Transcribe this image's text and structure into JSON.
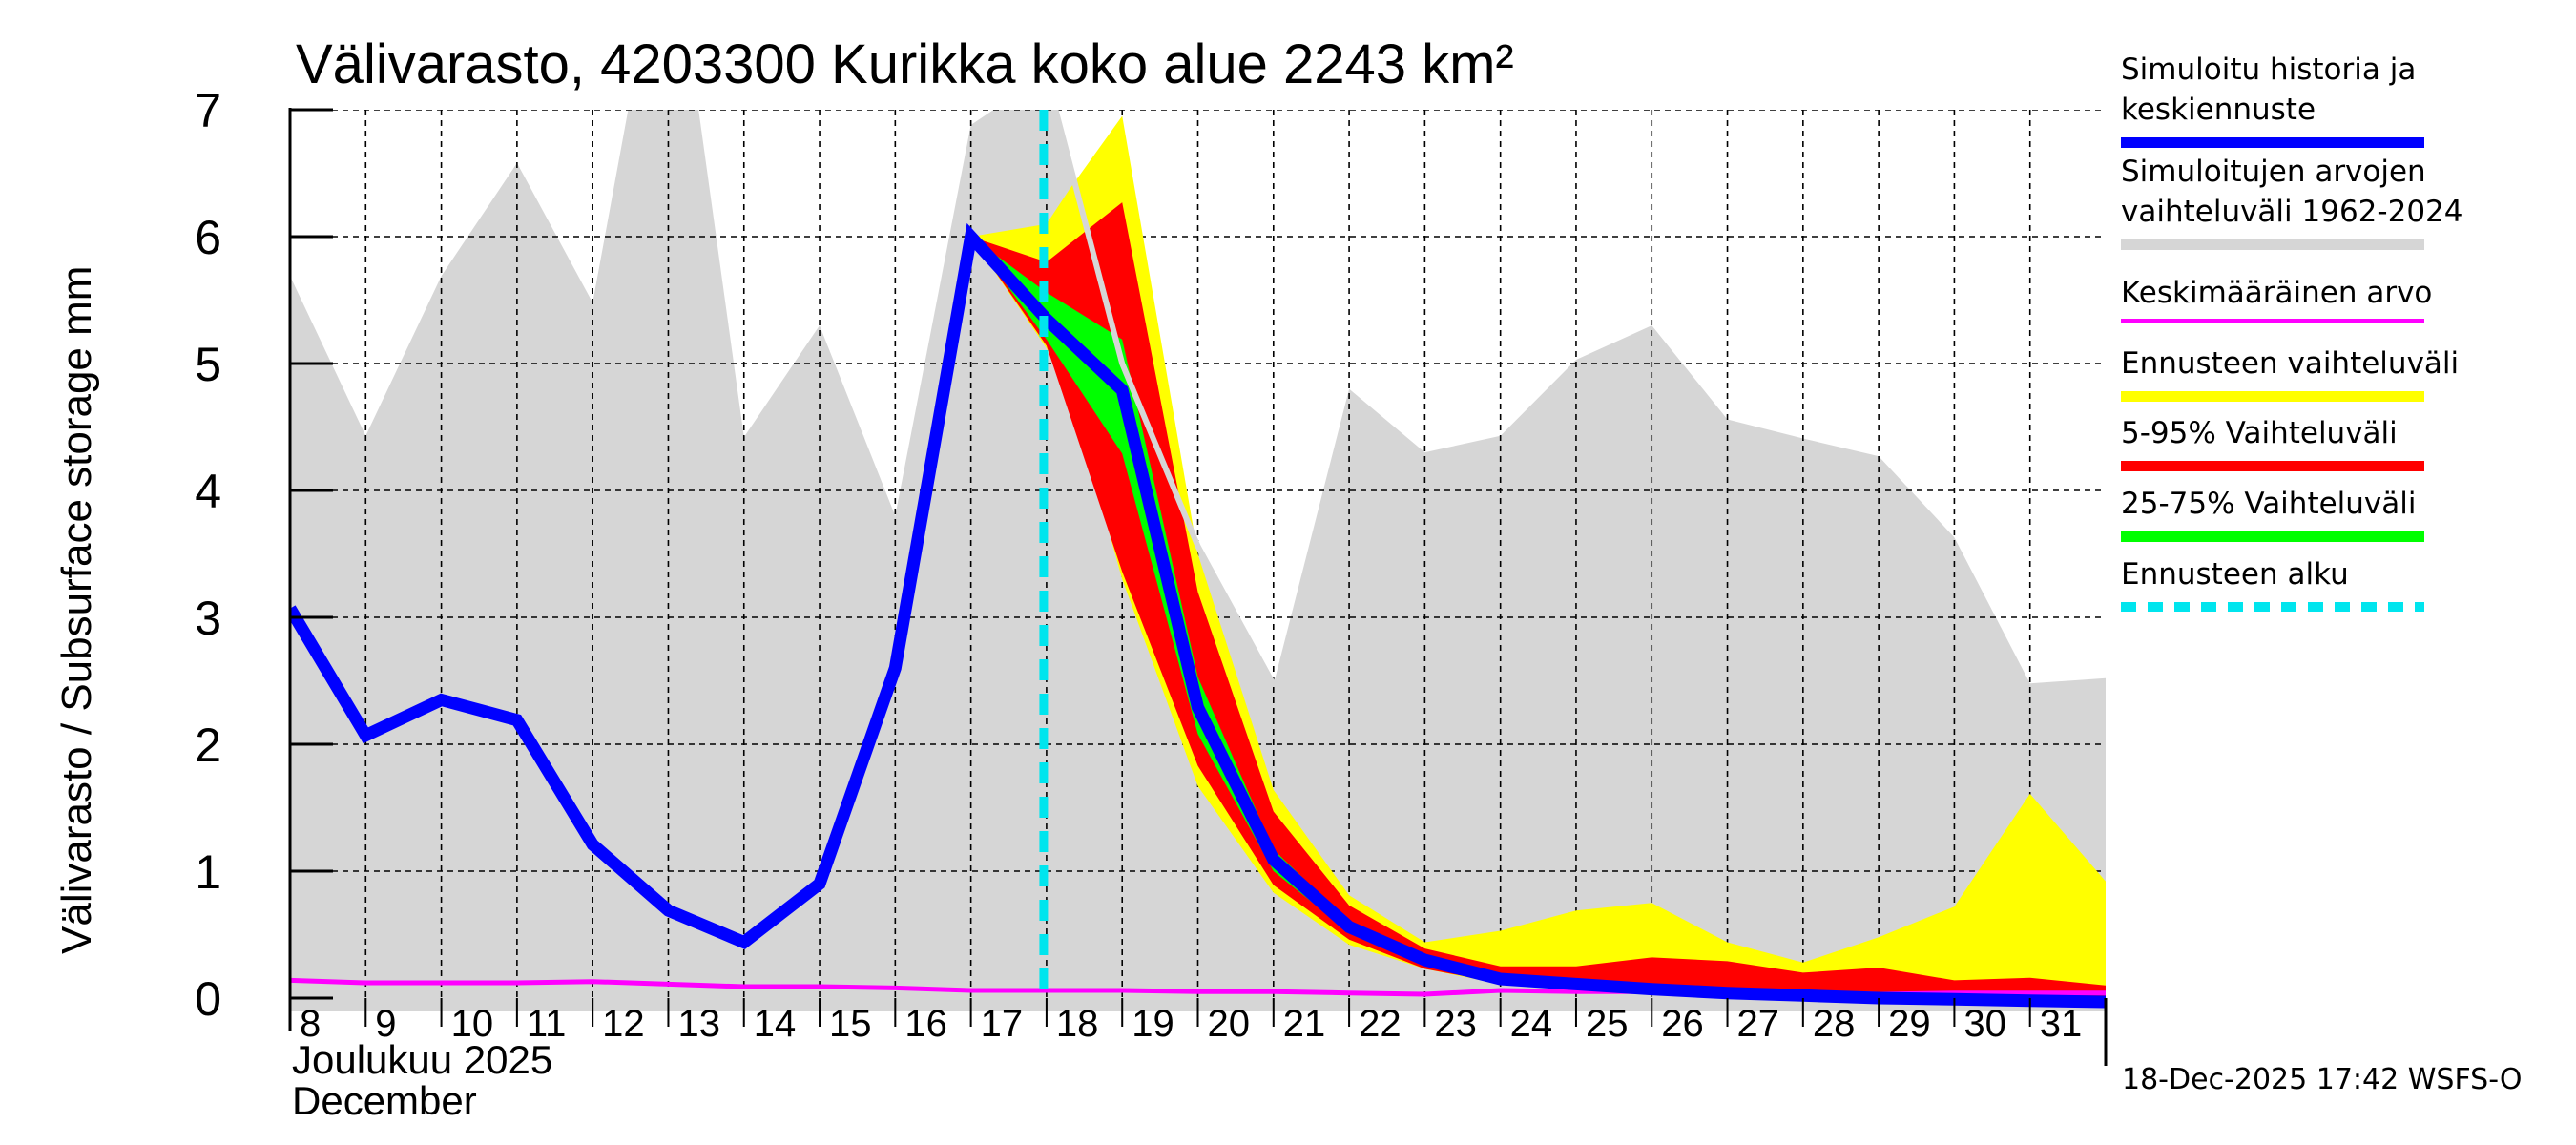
{
  "chart_data": {
    "type": "area",
    "title": "Välivarasto, 4203300 Kurikka koko alue 2243 km²",
    "ylabel": "Välivarasto / Subsurface storage  mm",
    "xlabel_line1": "Joulukuu  2025",
    "xlabel_line2": "December",
    "ylim": [
      0,
      7
    ],
    "xlim_days": [
      8,
      32
    ],
    "yticks": [
      "0",
      "1",
      "2",
      "3",
      "4",
      "5",
      "6",
      "7"
    ],
    "xticks": [
      "8",
      "9",
      "10",
      "11",
      "12",
      "13",
      "14",
      "15",
      "16",
      "17",
      "18",
      "19",
      "20",
      "21",
      "22",
      "23",
      "24",
      "25",
      "26",
      "27",
      "28",
      "29",
      "30",
      "31"
    ],
    "grid": true,
    "legend_position": "right",
    "forecast_start_day": 18,
    "timestamp": "18-Dec-2025 17:42 WSFS-O",
    "colors": {
      "history": "#0000ff",
      "sim_range": "#d6d6d6",
      "mean": "#ff00ff",
      "forecast_range": "#ffff00",
      "p5_95": "#ff0000",
      "p25_75": "#00ff00",
      "forecast_start": "#00e5ee"
    },
    "sim_range_1962_2024": {
      "x": [
        8,
        9,
        10,
        11,
        12,
        12.47,
        13.4,
        14,
        15,
        16,
        17,
        17.3,
        18.12,
        19,
        20,
        21,
        22,
        23,
        24,
        25,
        26,
        27,
        28,
        29,
        30,
        31,
        32
      ],
      "upper": [
        5.69,
        4.43,
        5.69,
        6.58,
        5.48,
        7.0,
        7.0,
        4.42,
        5.3,
        3.8,
        6.88,
        7.0,
        7.0,
        5.0,
        3.56,
        2.47,
        4.8,
        4.3,
        4.43,
        5.03,
        5.3,
        4.56,
        4.41,
        4.27,
        3.63,
        2.48,
        2.52
      ],
      "lower": 0
    },
    "mean_value": {
      "x": [
        8,
        9,
        10,
        11,
        12,
        13,
        14,
        15,
        16,
        17,
        18,
        19,
        20,
        21,
        22,
        23,
        24,
        25,
        26,
        27,
        28,
        29,
        30,
        31,
        32
      ],
      "y": [
        0.14,
        0.12,
        0.12,
        0.12,
        0.13,
        0.11,
        0.09,
        0.09,
        0.08,
        0.06,
        0.06,
        0.06,
        0.05,
        0.05,
        0.04,
        0.03,
        0.06,
        0.05,
        0.05,
        0.04,
        0.04,
        0.03,
        0.04,
        0.04,
        0.04
      ]
    },
    "forecast_range": {
      "x": [
        17,
        18,
        18.3,
        19,
        20,
        21,
        22,
        23,
        24,
        25,
        26,
        27,
        28,
        29,
        30,
        31,
        32
      ],
      "upper": [
        6.0,
        6.1,
        6.37,
        6.95,
        3.5,
        1.64,
        0.81,
        0.44,
        0.53,
        0.69,
        0.75,
        0.44,
        0.28,
        0.48,
        0.72,
        1.61,
        0.92
      ],
      "lower": [
        6.0,
        5.12,
        4.8,
        3.3,
        1.67,
        0.83,
        0.42,
        0.23,
        0.11,
        0.06,
        0.03,
        0.01,
        0.0,
        -0.01,
        -0.02,
        -0.03,
        -0.04
      ]
    },
    "p5_95": {
      "x": [
        17,
        18,
        19,
        20,
        21,
        22,
        23,
        24,
        25,
        26,
        27,
        28,
        29,
        30,
        31,
        32
      ],
      "upper": [
        6.0,
        5.8,
        6.27,
        3.2,
        1.47,
        0.73,
        0.39,
        0.25,
        0.25,
        0.32,
        0.29,
        0.2,
        0.24,
        0.14,
        0.16,
        0.1
      ],
      "lower": [
        6.0,
        5.14,
        3.36,
        1.83,
        0.89,
        0.46,
        0.23,
        0.12,
        0.07,
        0.04,
        0.02,
        0.01,
        0.0,
        -0.01,
        -0.02,
        -0.03
      ]
    },
    "p25_75": {
      "x": [
        17,
        18,
        19,
        20,
        21,
        22,
        23,
        24,
        25,
        26,
        27,
        28,
        29,
        30,
        31,
        32
      ],
      "upper": [
        6.0,
        5.56,
        5.19,
        2.53,
        1.17,
        0.6,
        0.32,
        0.18,
        0.13,
        0.1,
        0.08,
        0.06,
        0.04,
        0.03,
        0.02,
        0.01
      ],
      "lower": [
        6.0,
        5.19,
        4.29,
        2.08,
        1.0,
        0.52,
        0.27,
        0.14,
        0.09,
        0.06,
        0.04,
        0.02,
        0.01,
        0.0,
        -0.01,
        -0.02
      ]
    },
    "history_and_median_forecast": {
      "x": [
        8,
        9,
        10,
        11,
        12,
        13,
        14,
        15,
        16,
        17,
        18,
        19,
        20,
        21,
        22,
        23,
        24,
        25,
        26,
        27,
        28,
        29,
        30,
        31,
        32
      ],
      "y": [
        3.07,
        2.07,
        2.35,
        2.19,
        1.21,
        0.69,
        0.44,
        0.9,
        2.6,
        6.0,
        5.35,
        4.79,
        2.29,
        1.09,
        0.56,
        0.3,
        0.15,
        0.11,
        0.07,
        0.04,
        0.02,
        0.0,
        -0.01,
        -0.02,
        -0.03
      ]
    },
    "legend": [
      {
        "lines": [
          "Simuloitu historia ja",
          "keskiennuste"
        ],
        "color_key": "history",
        "style": "thick"
      },
      {
        "lines": [
          "Simuloitujen arvojen",
          "vaihteluväli 1962-2024"
        ],
        "color_key": "sim_range",
        "style": "thick"
      },
      {
        "lines": [
          "Keskimääräinen arvo"
        ],
        "color_key": "mean",
        "style": "thin"
      },
      {
        "lines": [
          "Ennusteen vaihteluväli"
        ],
        "color_key": "forecast_range",
        "style": "thick"
      },
      {
        "lines": [
          "5-95% Vaihteluväli"
        ],
        "color_key": "p5_95",
        "style": "thick"
      },
      {
        "lines": [
          "25-75% Vaihteluväli"
        ],
        "color_key": "p25_75",
        "style": "thick"
      },
      {
        "lines": [
          "Ennusteen alku"
        ],
        "color_key": "forecast_start",
        "style": "dashed"
      }
    ]
  }
}
